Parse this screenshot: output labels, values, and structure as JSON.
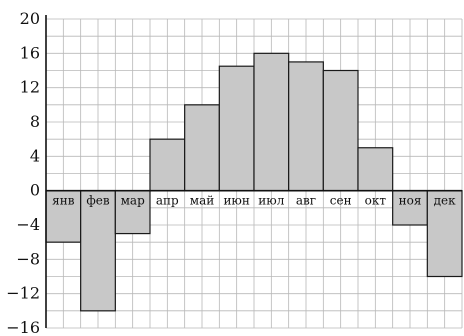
{
  "chart_data": {
    "type": "bar",
    "title": "",
    "xlabel": "",
    "ylabel": "",
    "categories": [
      "янв",
      "фев",
      "мар",
      "апр",
      "май",
      "июн",
      "июл",
      "авг",
      "сен",
      "окт",
      "ноя",
      "дек"
    ],
    "values": [
      -6,
      -14,
      -5,
      6,
      10,
      14.5,
      16,
      15,
      14,
      5,
      -4,
      -10
    ],
    "ylim": [
      -16,
      20
    ],
    "y_ticks": [
      20,
      16,
      12,
      8,
      4,
      0,
      -4,
      -8,
      -12,
      -16
    ],
    "y_tick_labels": [
      "20",
      "16",
      "12",
      "8",
      "4",
      "0",
      "−4",
      "−8",
      "−12",
      "−16"
    ],
    "grid": true,
    "colors": {
      "bar_fill": "#c8c8c8",
      "bar_stroke": "#1a1a1a",
      "grid": "#b8b8b8",
      "axis": "#111111"
    }
  }
}
